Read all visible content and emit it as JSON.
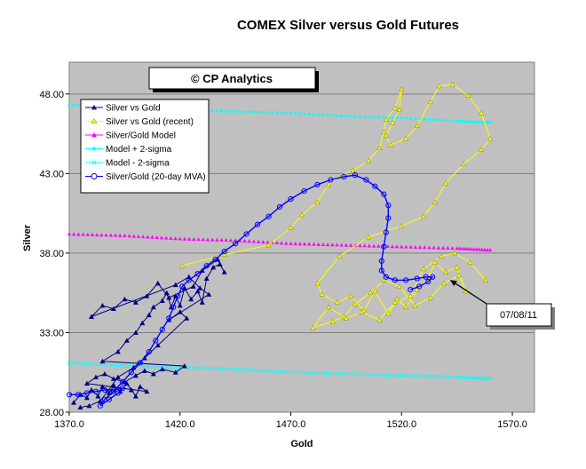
{
  "chart_data": {
    "type": "scatter",
    "title": "COMEX Silver versus Gold Futures",
    "xlabel": "Gold",
    "ylabel": "Silver",
    "xlim": [
      1370,
      1580
    ],
    "ylim": [
      28,
      50
    ],
    "x_ticks": [
      "1370.0",
      "1420.0",
      "1470.0",
      "1520.0",
      "1570.0"
    ],
    "y_ticks": [
      "28.00",
      "33.00",
      "38.00",
      "43.00",
      "48.00"
    ],
    "grid": "horizontal",
    "background": "#c0c0c0",
    "banner": "© CP Analytics",
    "annotation": {
      "text": "07/08/11",
      "x": 1542,
      "y": 36.3
    },
    "legend": {
      "placement": "top-left",
      "entries": [
        {
          "label": "Silver vs Gold",
          "color": "#000080",
          "marker": "triangle"
        },
        {
          "label": "Silver vs Gold (recent)",
          "color": "#ffff00",
          "marker": "triangle"
        },
        {
          "label": "Silver/Gold Model",
          "color": "#ff00ff",
          "marker": "triangle"
        },
        {
          "label": "Model + 2-sigma",
          "color": "#00ffff",
          "marker": "dot"
        },
        {
          "label": "Model - 2-sigma",
          "color": "#00ffff",
          "marker": "cross"
        },
        {
          "label": "Silver/Gold (20-day MVA)",
          "color": "#0000ff",
          "marker": "circle"
        }
      ]
    },
    "series": [
      {
        "name": "Silver vs Gold",
        "color": "#000080",
        "points": [
          [
            1372,
            28.6
          ],
          [
            1375,
            29.1
          ],
          [
            1378,
            28.9
          ],
          [
            1380,
            29.4
          ],
          [
            1383,
            29.0
          ],
          [
            1385,
            29.6
          ],
          [
            1388,
            29.2
          ],
          [
            1390,
            29.7
          ],
          [
            1393,
            29.3
          ],
          [
            1396,
            29.8
          ],
          [
            1398,
            29.4
          ],
          [
            1400,
            29.0
          ],
          [
            1402,
            29.6
          ],
          [
            1405,
            29.3
          ],
          [
            1378,
            29.8
          ],
          [
            1382,
            30.2
          ],
          [
            1386,
            30.4
          ],
          [
            1390,
            30.1
          ],
          [
            1395,
            29.9
          ],
          [
            1400,
            30.3
          ],
          [
            1404,
            30.6
          ],
          [
            1408,
            30.4
          ],
          [
            1412,
            30.7
          ],
          [
            1418,
            30.5
          ],
          [
            1422,
            30.9
          ],
          [
            1385,
            31.2
          ],
          [
            1392,
            31.8
          ],
          [
            1396,
            32.5
          ],
          [
            1400,
            33.0
          ],
          [
            1403,
            33.6
          ],
          [
            1406,
            34.1
          ],
          [
            1408,
            34.6
          ],
          [
            1412,
            35.0
          ],
          [
            1414,
            35.5
          ],
          [
            1416,
            34.6
          ],
          [
            1418,
            35.3
          ],
          [
            1420,
            34.7
          ],
          [
            1422,
            35.8
          ],
          [
            1425,
            35.1
          ],
          [
            1428,
            35.6
          ],
          [
            1430,
            34.9
          ],
          [
            1432,
            36.4
          ],
          [
            1435,
            37.1
          ],
          [
            1438,
            37.3
          ],
          [
            1440,
            36.8
          ],
          [
            1437,
            37.6
          ],
          [
            1430,
            36.9
          ],
          [
            1426,
            35.9
          ],
          [
            1415,
            35.2
          ],
          [
            1410,
            36.1
          ],
          [
            1405,
            35.3
          ],
          [
            1400,
            34.9
          ],
          [
            1395,
            35.1
          ],
          [
            1390,
            34.5
          ],
          [
            1385,
            34.7
          ],
          [
            1380,
            34.0
          ],
          [
            1418,
            36.0
          ],
          [
            1424,
            36.5
          ],
          [
            1429,
            35.8
          ],
          [
            1433,
            35.4
          ],
          [
            1415,
            33.8
          ],
          [
            1420,
            34.3
          ],
          [
            1423,
            33.9
          ],
          [
            1410,
            32.2
          ],
          [
            1404,
            31.4
          ],
          [
            1399,
            30.8
          ],
          [
            1392,
            30.2
          ],
          [
            1384,
            28.7
          ],
          [
            1379,
            28.4
          ],
          [
            1375,
            28.3
          ]
        ]
      },
      {
        "name": "Silver vs Gold (recent)",
        "color": "#ffff00",
        "points": [
          [
            1421,
            37.2
          ],
          [
            1440,
            37.9
          ],
          [
            1460,
            38.5
          ],
          [
            1470,
            39.6
          ],
          [
            1475,
            40.4
          ],
          [
            1482,
            41.2
          ],
          [
            1487,
            42.3
          ],
          [
            1493,
            42.9
          ],
          [
            1498,
            43.2
          ],
          [
            1505,
            43.8
          ],
          [
            1510,
            44.6
          ],
          [
            1512,
            45.6
          ],
          [
            1513,
            46.4
          ],
          [
            1517,
            47.1
          ],
          [
            1520,
            48.3
          ],
          [
            1519,
            47.0
          ],
          [
            1516,
            46.2
          ],
          [
            1513,
            45.4
          ],
          [
            1515,
            44.8
          ],
          [
            1522,
            45.2
          ],
          [
            1527,
            46.0
          ],
          [
            1533,
            47.5
          ],
          [
            1537,
            48.5
          ],
          [
            1543,
            48.6
          ],
          [
            1550,
            47.9
          ],
          [
            1556,
            46.8
          ],
          [
            1560,
            45.2
          ],
          [
            1556,
            44.5
          ],
          [
            1548,
            43.6
          ],
          [
            1540,
            42.4
          ],
          [
            1535,
            41.2
          ],
          [
            1530,
            40.3
          ],
          [
            1520,
            39.7
          ],
          [
            1505,
            39.0
          ],
          [
            1492,
            37.8
          ],
          [
            1482,
            36.1
          ],
          [
            1484,
            35.4
          ],
          [
            1491,
            34.9
          ],
          [
            1497,
            35.3
          ],
          [
            1503,
            34.4
          ],
          [
            1508,
            35.6
          ],
          [
            1514,
            34.2
          ],
          [
            1518,
            35.1
          ],
          [
            1522,
            34.6
          ],
          [
            1527,
            35.7
          ],
          [
            1532,
            36.4
          ],
          [
            1535,
            37.4
          ],
          [
            1540,
            36.8
          ],
          [
            1545,
            37.1
          ],
          [
            1549,
            35.6
          ],
          [
            1546,
            36.6
          ],
          [
            1539,
            36.1
          ],
          [
            1533,
            35.2
          ],
          [
            1526,
            34.7
          ],
          [
            1519,
            35.9
          ],
          [
            1512,
            36.3
          ],
          [
            1506,
            35.5
          ],
          [
            1499,
            34.8
          ],
          [
            1494,
            34.0
          ],
          [
            1489,
            33.7
          ],
          [
            1480,
            33.3
          ],
          [
            1487,
            34.6
          ],
          [
            1495,
            33.9
          ],
          [
            1502,
            34.3
          ],
          [
            1510,
            33.8
          ],
          [
            1517,
            34.9
          ],
          [
            1524,
            35.3
          ],
          [
            1530,
            37.0
          ],
          [
            1538,
            37.8
          ],
          [
            1544,
            38.0
          ],
          [
            1551,
            37.4
          ],
          [
            1558,
            36.3
          ]
        ]
      },
      {
        "name": "Silver/Gold Model",
        "color": "#ff00ff",
        "points": [
          [
            1370,
            39.2
          ],
          [
            1395,
            39.1
          ],
          [
            1420,
            38.9
          ],
          [
            1445,
            38.8
          ],
          [
            1470,
            38.6
          ],
          [
            1495,
            38.5
          ],
          [
            1520,
            38.4
          ],
          [
            1545,
            38.3
          ],
          [
            1560,
            38.2
          ]
        ]
      },
      {
        "name": "Model + 2-sigma",
        "color": "#00ffff",
        "points": [
          [
            1370,
            47.3
          ],
          [
            1395,
            47.1
          ],
          [
            1420,
            47.0
          ],
          [
            1445,
            46.9
          ],
          [
            1470,
            46.8
          ],
          [
            1495,
            46.6
          ],
          [
            1520,
            46.5
          ],
          [
            1545,
            46.3
          ],
          [
            1560,
            46.2
          ]
        ]
      },
      {
        "name": "Model - 2-sigma",
        "color": "#00ffff",
        "points": [
          [
            1370,
            31.1
          ],
          [
            1395,
            30.9
          ],
          [
            1420,
            30.8
          ],
          [
            1445,
            30.7
          ],
          [
            1470,
            30.5
          ],
          [
            1495,
            30.4
          ],
          [
            1520,
            30.3
          ],
          [
            1545,
            30.2
          ],
          [
            1560,
            30.1
          ]
        ]
      },
      {
        "name": "Silver/Gold (20-day MVA)",
        "color": "#0000ff",
        "points": [
          [
            1370,
            29.1
          ],
          [
            1374,
            29.1
          ],
          [
            1378,
            29.2
          ],
          [
            1382,
            29.3
          ],
          [
            1386,
            29.4
          ],
          [
            1390,
            29.4
          ],
          [
            1394,
            29.5
          ],
          [
            1392,
            29.2
          ],
          [
            1388,
            28.8
          ],
          [
            1384,
            28.4
          ],
          [
            1386,
            28.8
          ],
          [
            1390,
            29.3
          ],
          [
            1394,
            29.9
          ],
          [
            1398,
            30.5
          ],
          [
            1402,
            31.1
          ],
          [
            1406,
            31.8
          ],
          [
            1409,
            32.5
          ],
          [
            1412,
            33.2
          ],
          [
            1415,
            33.9
          ],
          [
            1417,
            34.6
          ],
          [
            1419,
            35.3
          ],
          [
            1421,
            35.9
          ],
          [
            1424,
            36.3
          ],
          [
            1428,
            36.7
          ],
          [
            1432,
            37.2
          ],
          [
            1436,
            37.6
          ],
          [
            1440,
            38.1
          ],
          [
            1445,
            38.6
          ],
          [
            1450,
            39.2
          ],
          [
            1455,
            39.8
          ],
          [
            1460,
            40.3
          ],
          [
            1465,
            40.9
          ],
          [
            1470,
            41.4
          ],
          [
            1476,
            41.9
          ],
          [
            1482,
            42.3
          ],
          [
            1488,
            42.6
          ],
          [
            1494,
            42.8
          ],
          [
            1499,
            42.9
          ],
          [
            1504,
            42.6
          ],
          [
            1508,
            42.2
          ],
          [
            1512,
            41.7
          ],
          [
            1514,
            41.0
          ],
          [
            1514,
            40.2
          ],
          [
            1513,
            39.3
          ],
          [
            1512,
            38.4
          ],
          [
            1511,
            37.5
          ],
          [
            1511,
            36.9
          ],
          [
            1513,
            36.5
          ],
          [
            1517,
            36.3
          ],
          [
            1522,
            36.3
          ],
          [
            1527,
            36.4
          ],
          [
            1531,
            36.5
          ],
          [
            1534,
            36.5
          ],
          [
            1532,
            36.2
          ],
          [
            1528,
            35.9
          ],
          [
            1524,
            35.7
          ]
        ]
      }
    ]
  }
}
